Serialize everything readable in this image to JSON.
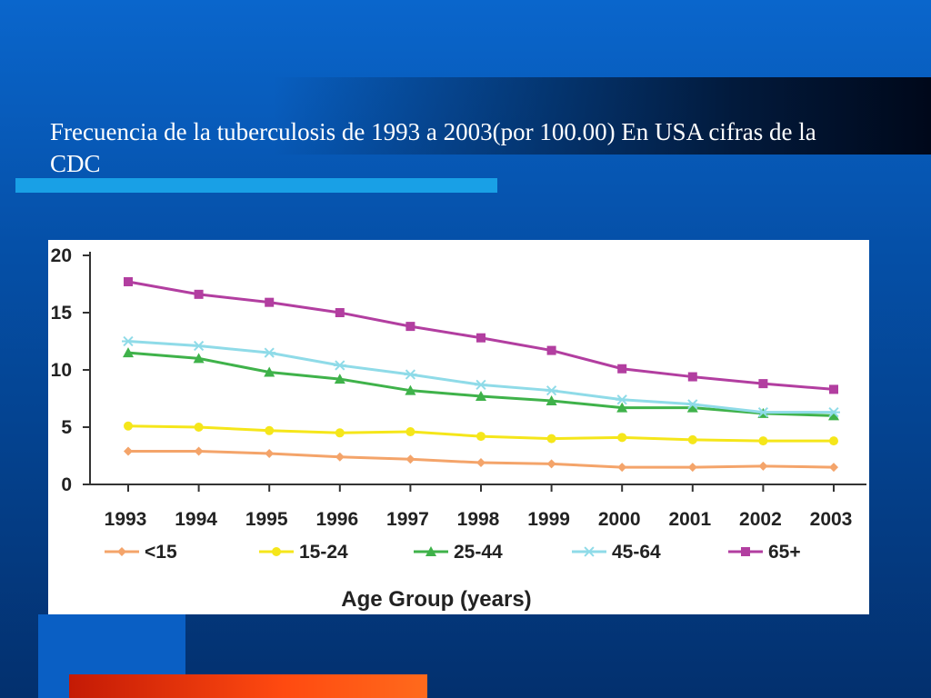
{
  "slide": {
    "title": "Frecuencia de la tuberculosis  de 1993 a 2003(por 100.00) En USA cifras de la CDC"
  },
  "chart_data": {
    "type": "line",
    "xlabel": "Age Group (years)",
    "ylabel": "",
    "ylim": [
      0,
      20
    ],
    "yticks": [
      0,
      5,
      10,
      15,
      20
    ],
    "categories": [
      "1993",
      "1994",
      "1995",
      "1996",
      "1997",
      "1998",
      "1999",
      "2000",
      "2001",
      "2002",
      "2003"
    ],
    "legend_placement": "bottom",
    "grid": false,
    "series": [
      {
        "name": "<15",
        "color": "#f4a46a",
        "marker": "diamond",
        "values": [
          2.9,
          2.9,
          2.7,
          2.4,
          2.2,
          1.9,
          1.8,
          1.5,
          1.5,
          1.6,
          1.5
        ]
      },
      {
        "name": "15-24",
        "color": "#f5e61a",
        "marker": "circle",
        "values": [
          5.1,
          5.0,
          4.7,
          4.5,
          4.6,
          4.2,
          4.0,
          4.1,
          3.9,
          3.8,
          3.8
        ]
      },
      {
        "name": "25-44",
        "color": "#3fb24a",
        "marker": "triangle",
        "values": [
          11.5,
          11.0,
          9.8,
          9.2,
          8.2,
          7.7,
          7.3,
          6.7,
          6.7,
          6.2,
          6.0
        ]
      },
      {
        "name": "45-64",
        "color": "#8fdbe8",
        "marker": "asterisk",
        "values": [
          12.5,
          12.1,
          11.5,
          10.4,
          9.6,
          8.7,
          8.2,
          7.4,
          7.0,
          6.3,
          6.3
        ]
      },
      {
        "name": "65+",
        "color": "#b23ea0",
        "marker": "square",
        "values": [
          17.7,
          16.6,
          15.9,
          15.0,
          13.8,
          12.8,
          11.7,
          10.1,
          9.4,
          8.8,
          8.3
        ]
      }
    ]
  }
}
